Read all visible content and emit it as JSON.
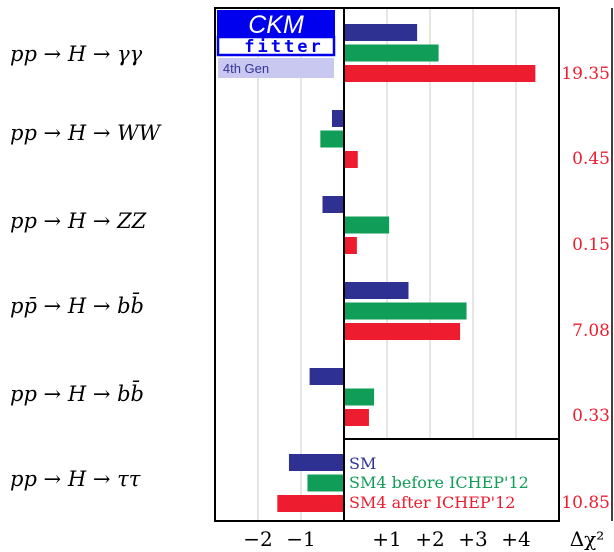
{
  "chart_data": {
    "type": "bar",
    "orientation": "horizontal",
    "categories": [
      "pp → H → γγ",
      "pp → H → WW",
      "pp → H → ZZ",
      "pp̄ → H → bb̄",
      "pp → H → bb̄",
      "pp → H → ττ"
    ],
    "series": [
      {
        "name": "SM",
        "color": "#2e3192",
        "values": [
          1.7,
          -0.28,
          -0.5,
          1.5,
          -0.8,
          -1.28
        ]
      },
      {
        "name": "SM4 before ICHEP'12",
        "color": "#0f9d58",
        "values": [
          2.2,
          -0.55,
          1.05,
          2.85,
          0.7,
          -0.85
        ]
      },
      {
        "name": "SM4 after ICHEP'12",
        "color": "#ed1c2e",
        "values": [
          4.45,
          0.32,
          0.3,
          2.7,
          0.58,
          -1.55
        ]
      }
    ],
    "delta_chi2": [
      "19.35",
      "0.45",
      "0.15",
      "7.08",
      "0.33",
      "10.85"
    ],
    "delta_chi2_label": "Δχ²",
    "xlim": [
      -3.0,
      5.0
    ],
    "xticks": [
      -2,
      -1,
      1,
      2,
      3,
      4
    ],
    "xtick_labels": [
      "−2",
      "−1",
      "+1",
      "+2",
      "+3",
      "+4"
    ],
    "grid": "vertical",
    "legend_position": "bottom-right",
    "colors": {
      "delta_text": "#ed1c2e",
      "grid": "#cccccc",
      "axis": "#000000"
    }
  },
  "logo": {
    "line1": "CKM",
    "line2": "fitter",
    "badge": "4th Gen",
    "colors": {
      "primary": "#0000ee",
      "badge_bg": "#c8c8f0"
    }
  }
}
